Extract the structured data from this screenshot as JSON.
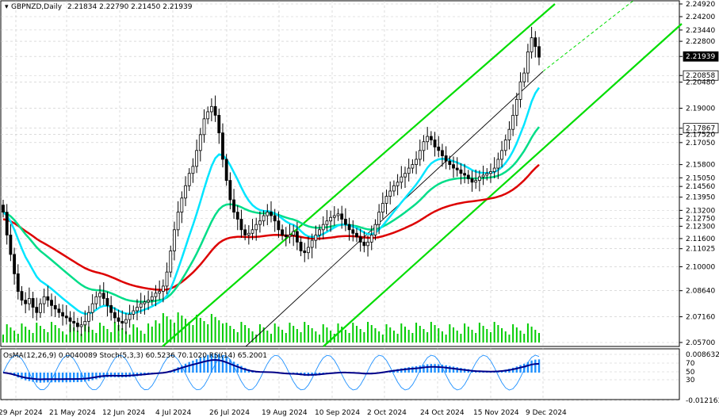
{
  "header": {
    "symbol_label": "GBPNZD,Daily",
    "ohlc": "2.21834 2.22790 2.21450 2.21939"
  },
  "indicator_header": "OsMA(12,26,9) 0.0040089  Stoch(5,3,3) 60.5236 70.1020  RSI(14) 65.2001",
  "colors": {
    "background": "#ffffff",
    "candles": "#000000",
    "ema_fast": "#00e5ff",
    "ema_mid": "#00dd88",
    "ema_slow": "#dd0000",
    "channel": "#00dd00",
    "osma": "#1e90ff",
    "stoch_main": "#1e90ff",
    "rsi": "#000088",
    "volume": "#00cc00",
    "current_price_box": "#000000"
  },
  "chart_data": {
    "type": "candlestick",
    "y_ticks": [
      "2.24920",
      "2.24200",
      "2.23440",
      "2.22800",
      "2.21939",
      "2.20858",
      "2.20480",
      "2.19000",
      "2.17867",
      "2.17520",
      "2.17050",
      "2.15800",
      "2.15050",
      "2.14560",
      "2.13950",
      "2.13200",
      "2.12750",
      "2.12300",
      "2.11600",
      "2.11025",
      "2.10000",
      "2.08640",
      "2.07160",
      "2.05700"
    ],
    "boxed_levels": [
      "2.21939",
      "2.20858",
      "2.17867"
    ],
    "x_ticks": [
      "29 Apr 2024",
      "21 May 2024",
      "12 Jun 2024",
      "4 Jul 2024",
      "26 Jul 2024",
      "19 Aug 2024",
      "10 Sep 2024",
      "2 Oct 2024",
      "24 Oct 2024",
      "15 Nov 2024",
      "9 Dec 2024"
    ],
    "ylim": [
      2.057,
      2.2492
    ],
    "indicator_ticks": [
      "0.0086322",
      "70",
      "50",
      "30",
      "-0.0121638"
    ],
    "close": [
      2.131,
      2.118,
      2.107,
      2.096,
      2.086,
      2.081,
      2.079,
      2.082,
      2.077,
      2.074,
      2.079,
      2.083,
      2.081,
      2.078,
      2.076,
      2.074,
      2.072,
      2.071,
      2.069,
      2.068,
      2.066,
      2.067,
      2.069,
      2.074,
      2.079,
      2.083,
      2.085,
      2.082,
      2.078,
      2.074,
      2.071,
      2.069,
      2.068,
      2.07,
      2.073,
      2.075,
      2.077,
      2.079,
      2.08,
      2.081,
      2.083,
      2.085,
      2.086,
      2.089,
      2.097,
      2.109,
      2.121,
      2.131,
      2.139,
      2.146,
      2.153,
      2.157,
      2.166,
      2.175,
      2.184,
      2.188,
      2.191,
      2.186,
      2.176,
      2.161,
      2.149,
      2.138,
      2.131,
      2.127,
      2.121,
      2.118,
      2.119,
      2.121,
      2.124,
      2.126,
      2.129,
      2.131,
      2.129,
      2.126,
      2.121,
      2.118,
      2.117,
      2.118,
      2.12,
      2.114,
      2.109,
      2.108,
      2.111,
      2.115,
      2.118,
      2.121,
      2.124,
      2.126,
      2.128,
      2.129,
      2.13,
      2.127,
      2.124,
      2.121,
      2.119,
      2.117,
      2.114,
      2.112,
      2.114,
      2.118,
      2.124,
      2.131,
      2.136,
      2.14,
      2.143,
      2.146,
      2.148,
      2.151,
      2.153,
      2.156,
      2.158,
      2.161,
      2.166,
      2.171,
      2.174,
      2.172,
      2.168,
      2.166,
      2.163,
      2.16,
      2.158,
      2.156,
      2.155,
      2.153,
      2.152,
      2.15,
      2.148,
      2.149,
      2.151,
      2.152,
      2.153,
      2.154,
      2.156,
      2.161,
      2.166,
      2.172,
      2.178,
      2.186,
      2.195,
      2.205,
      2.21,
      2.222,
      2.23,
      2.225,
      2.219
    ]
  }
}
